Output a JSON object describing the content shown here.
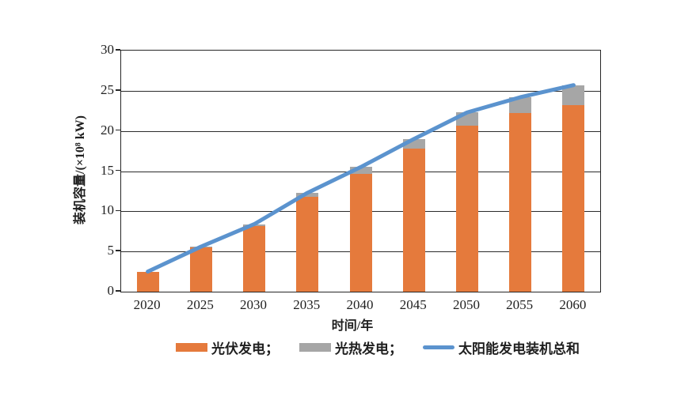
{
  "chart_data": {
    "type": "bar",
    "stacked": true,
    "title": "",
    "xlabel": "时间/年",
    "ylabel": "装机容量/(×10⁸ kW)",
    "categories": [
      "2020",
      "2025",
      "2030",
      "2035",
      "2040",
      "2045",
      "2050",
      "2055",
      "2060"
    ],
    "series": [
      {
        "name": "光伏发电",
        "type": "bar",
        "color": "#E57A3C",
        "values": [
          2.5,
          5.5,
          8.2,
          11.8,
          14.7,
          17.8,
          20.7,
          22.2,
          23.2
        ]
      },
      {
        "name": "光热发电",
        "type": "bar",
        "color": "#A6A6A6",
        "values": [
          0,
          0.1,
          0.2,
          0.5,
          0.8,
          1.2,
          1.6,
          2.0,
          2.5
        ]
      },
      {
        "name": "太阳能发电装机总和",
        "type": "line",
        "color": "#5B93CE",
        "values": [
          2.5,
          5.6,
          8.4,
          12.3,
          15.5,
          19.0,
          22.3,
          24.2,
          25.7
        ]
      }
    ],
    "ylim": [
      0,
      30
    ],
    "yticks": [
      0,
      5,
      10,
      15,
      20,
      25,
      30
    ],
    "grid": "horizontal",
    "legend_position": "bottom",
    "legend": {
      "pv_label": "光伏发电；",
      "csp_label": "光热发电；",
      "line_label": "太阳能发电装机总和"
    },
    "axis_color": "#262626"
  }
}
